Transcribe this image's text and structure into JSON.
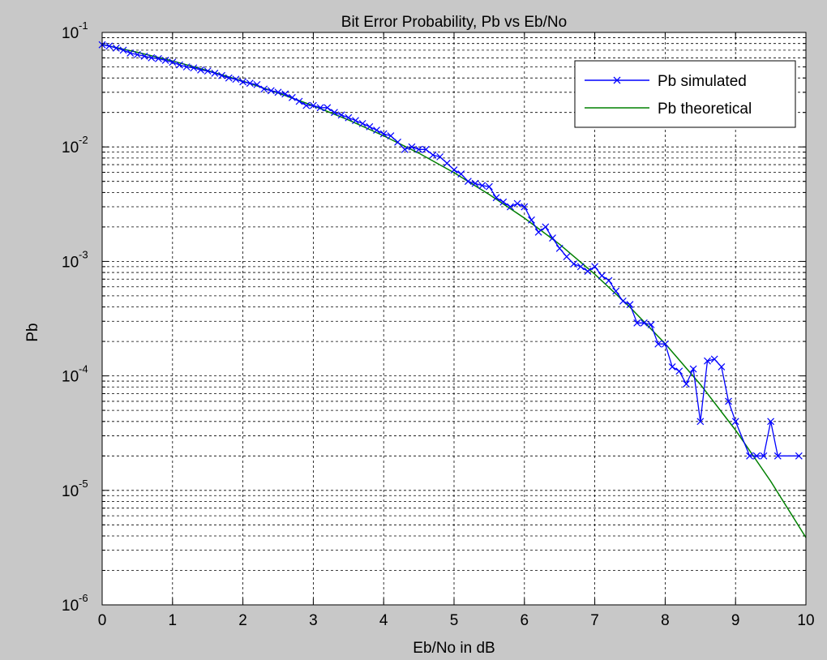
{
  "colors": {
    "figure_background": "#c8c8c8",
    "axes_background": "#ffffff",
    "simulated": "#0000ff",
    "theoretical": "#008000",
    "grid": "#000000"
  },
  "chart_data": {
    "type": "line",
    "title": "Bit Error Probability, Pb vs Eb/No",
    "xlabel": "Eb/No in dB",
    "ylabel": "Pb",
    "xlim": [
      0,
      10
    ],
    "ylim": [
      1e-06,
      0.1
    ],
    "yscale": "log",
    "grid": true,
    "grid_style": "dashed",
    "legend_position": "top-right",
    "x_ticks": [
      "0",
      "1",
      "2",
      "3",
      "4",
      "5",
      "6",
      "7",
      "8",
      "9",
      "10"
    ],
    "y_ticks": [
      {
        "base": "10",
        "exp": "-1",
        "value": 0.1
      },
      {
        "base": "10",
        "exp": "-2",
        "value": 0.01
      },
      {
        "base": "10",
        "exp": "-3",
        "value": 0.001
      },
      {
        "base": "10",
        "exp": "-4",
        "value": 0.0001
      },
      {
        "base": "10",
        "exp": "-5",
        "value": 1e-05
      },
      {
        "base": "10",
        "exp": "-6",
        "value": 1e-06
      }
    ],
    "series": [
      {
        "name": "Pb simulated",
        "color": "#0000ff",
        "marker": "x",
        "x": [
          0,
          0.1,
          0.2,
          0.3,
          0.4,
          0.5,
          0.6,
          0.7,
          0.8,
          0.9,
          1.0,
          1.1,
          1.2,
          1.3,
          1.4,
          1.5,
          1.6,
          1.7,
          1.8,
          1.9,
          2.0,
          2.1,
          2.2,
          2.3,
          2.4,
          2.5,
          2.6,
          2.7,
          2.8,
          2.9,
          3.0,
          3.1,
          3.2,
          3.3,
          3.4,
          3.5,
          3.6,
          3.7,
          3.8,
          3.9,
          4.0,
          4.1,
          4.2,
          4.3,
          4.4,
          4.5,
          4.6,
          4.7,
          4.8,
          4.9,
          5.0,
          5.1,
          5.2,
          5.3,
          5.4,
          5.5,
          5.6,
          5.7,
          5.8,
          5.9,
          6.0,
          6.1,
          6.2,
          6.3,
          6.4,
          6.5,
          6.6,
          6.7,
          6.8,
          6.9,
          7.0,
          7.1,
          7.2,
          7.3,
          7.4,
          7.5,
          7.6,
          7.7,
          7.8,
          7.9,
          8.0,
          8.1,
          8.2,
          8.3,
          8.4,
          8.5,
          8.6,
          8.7,
          8.8,
          8.9,
          9.0,
          9.2,
          9.3,
          9.4,
          9.5,
          9.6,
          9.9
        ],
        "y": [
          0.078,
          0.076,
          0.073,
          0.07,
          0.066,
          0.064,
          0.062,
          0.06,
          0.059,
          0.057,
          0.055,
          0.052,
          0.05,
          0.049,
          0.047,
          0.046,
          0.044,
          0.042,
          0.04,
          0.039,
          0.037,
          0.036,
          0.035,
          0.032,
          0.031,
          0.03,
          0.029,
          0.027,
          0.025,
          0.023,
          0.023,
          0.022,
          0.022,
          0.02,
          0.019,
          0.018,
          0.017,
          0.016,
          0.015,
          0.014,
          0.013,
          0.0125,
          0.011,
          0.0095,
          0.01,
          0.0095,
          0.0095,
          0.0085,
          0.0082,
          0.0072,
          0.0063,
          0.0058,
          0.005,
          0.0048,
          0.0046,
          0.0045,
          0.0036,
          0.0033,
          0.003,
          0.0032,
          0.003,
          0.0023,
          0.0018,
          0.002,
          0.0016,
          0.0013,
          0.0011,
          0.00095,
          0.0009,
          0.00082,
          0.0009,
          0.00075,
          0.00068,
          0.00055,
          0.00045,
          0.00042,
          0.00029,
          0.00029,
          0.00028,
          0.00019,
          0.00019,
          0.00012,
          0.00011,
          8.5e-05,
          0.000115,
          4e-05,
          0.000135,
          0.00014,
          0.00012,
          6e-05,
          4e-05,
          2e-05,
          2e-05,
          2e-05,
          4e-05,
          2e-05,
          2e-05
        ]
      },
      {
        "name": "Pb theoretical",
        "color": "#008000",
        "marker": "none",
        "x": [
          0,
          0.5,
          1.0,
          1.5,
          2.0,
          2.5,
          3.0,
          3.5,
          4.0,
          4.5,
          5.0,
          5.5,
          6.0,
          6.5,
          7.0,
          7.5,
          8.0,
          8.5,
          9.0,
          9.5,
          10.0
        ],
        "y": [
          0.0786,
          0.0671,
          0.0563,
          0.0464,
          0.0375,
          0.0296,
          0.0229,
          0.0172,
          0.0125,
          0.00882,
          0.00595,
          0.00384,
          0.00239,
          0.00141,
          0.000773,
          0.000398,
          0.000191,
          8.42e-05,
          3.36e-05,
          1.2e-05,
          3.87e-06
        ]
      }
    ]
  }
}
